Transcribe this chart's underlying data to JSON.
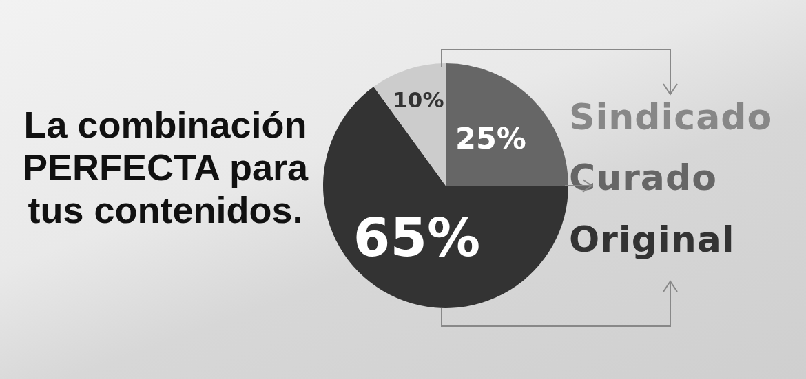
{
  "chart_data": {
    "type": "pie",
    "title": "La combinación PERFECTA para tus contenidos.",
    "categories": [
      "Curado",
      "Original",
      "Sindicado"
    ],
    "values": [
      25,
      65,
      10
    ],
    "colors": [
      "#666666",
      "#333333",
      "#cccccc"
    ],
    "value_labels": [
      "25%",
      "65%",
      "10%"
    ]
  }
}
